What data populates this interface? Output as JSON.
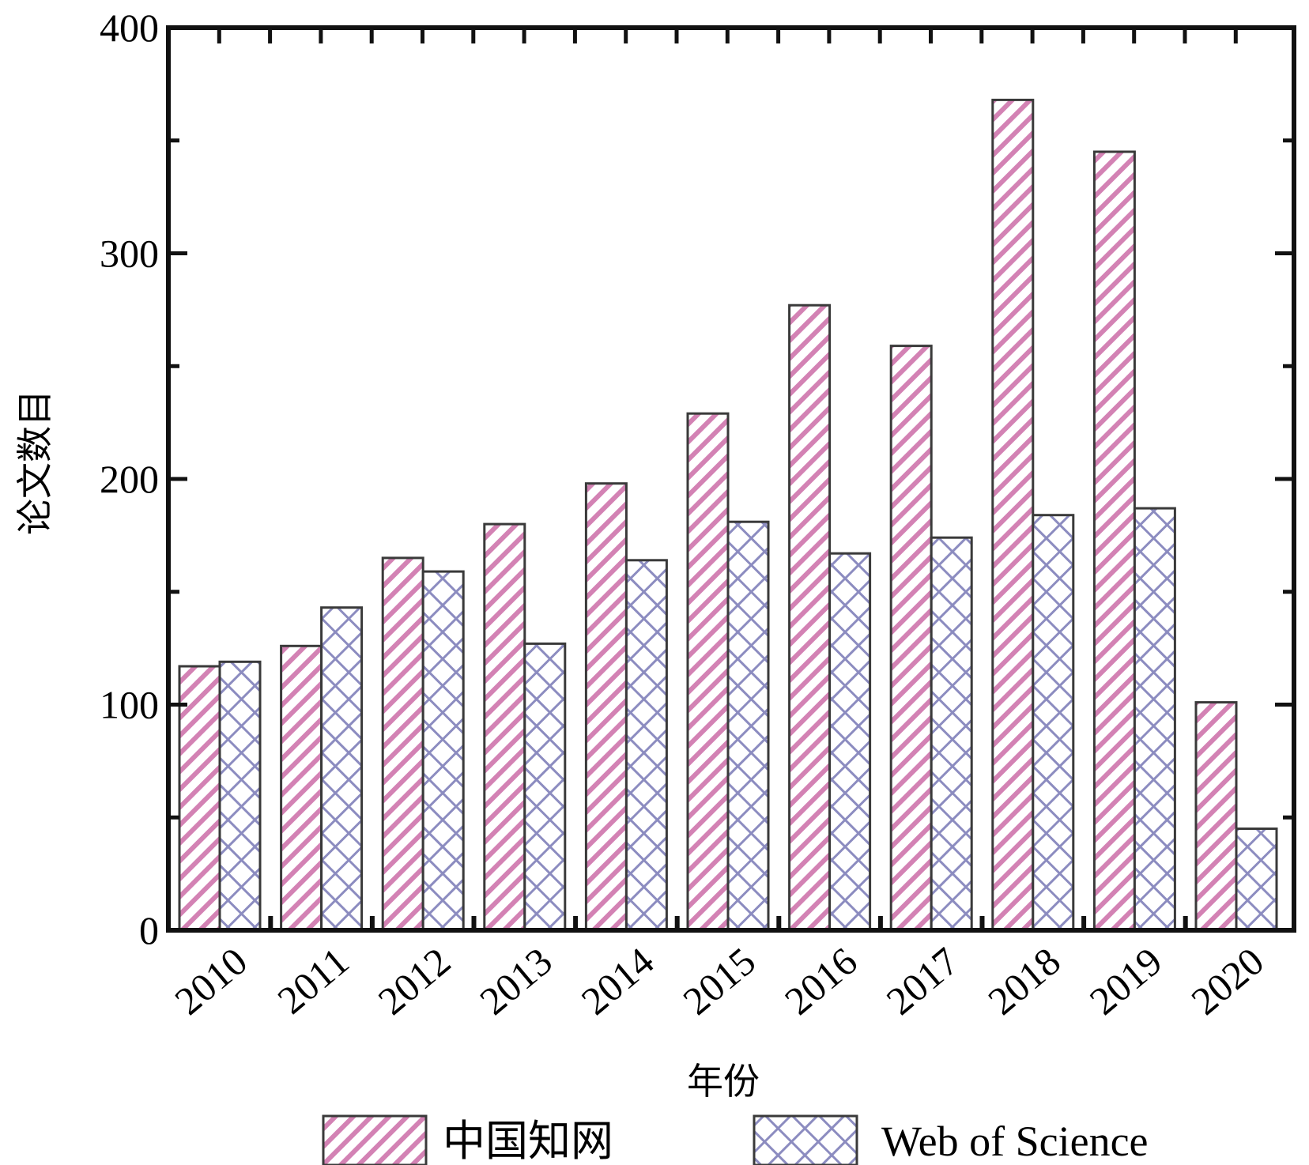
{
  "chart_data": {
    "type": "bar",
    "categories": [
      "2010",
      "2011",
      "2012",
      "2013",
      "2014",
      "2015",
      "2016",
      "2017",
      "2018",
      "2019",
      "2020"
    ],
    "series": [
      {
        "name": "中国知网",
        "values": [
          117,
          126,
          165,
          180,
          198,
          229,
          277,
          259,
          368,
          345,
          101
        ],
        "color": "#d382b4",
        "pattern": "diagonal-hatch"
      },
      {
        "name": "Web of Science",
        "values": [
          119,
          143,
          159,
          127,
          164,
          181,
          167,
          174,
          184,
          187,
          45
        ],
        "color": "#8c8cc0",
        "pattern": "cross-hatch"
      }
    ],
    "xlabel": "年份",
    "ylabel": "论文数目",
    "ylim": [
      0,
      400
    ],
    "yticks": [
      "0",
      "100",
      "200",
      "300",
      "400"
    ],
    "grid": false,
    "legend_position": "bottom"
  }
}
